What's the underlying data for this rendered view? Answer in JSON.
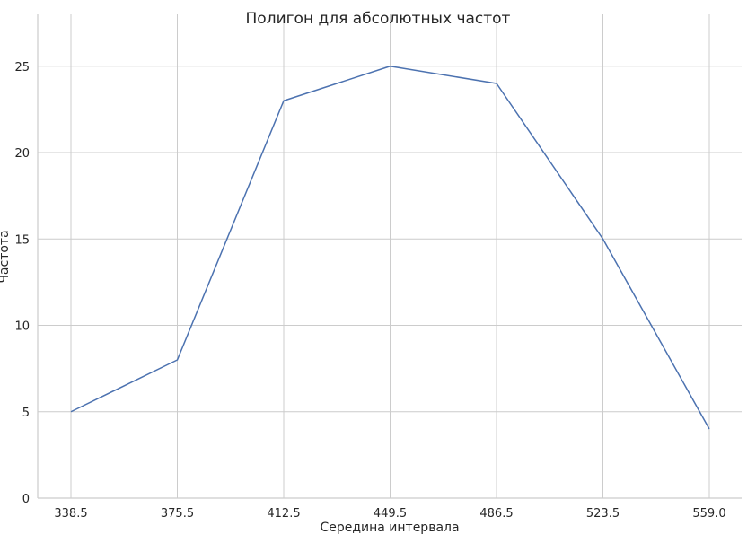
{
  "chart_data": {
    "type": "line",
    "title": "Полигон для абсолютных частот",
    "xlabel": "Середина интервала",
    "ylabel": "Частота",
    "x": [
      338.5,
      375.5,
      412.5,
      449.5,
      486.5,
      523.5,
      559.0
    ],
    "x_tick_labels": [
      "338.5",
      "375.5",
      "412.5",
      "449.5",
      "486.5",
      "523.5",
      "559.0"
    ],
    "values": [
      5,
      8,
      23,
      25,
      24,
      15,
      4
    ],
    "y_ticks": [
      0,
      5,
      10,
      15,
      20,
      25
    ],
    "ylim": [
      0,
      28
    ],
    "grid": true,
    "line_color": "#4c72b0"
  }
}
